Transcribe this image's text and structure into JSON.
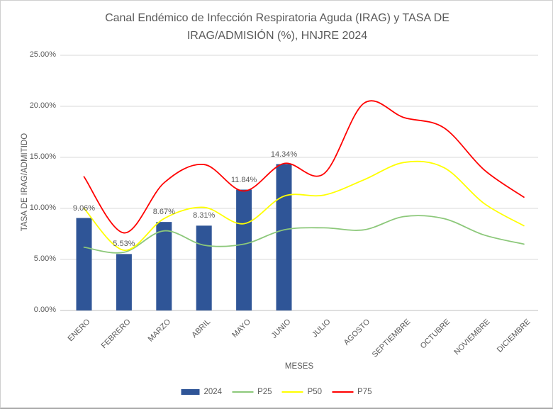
{
  "window": {
    "background": "#FFFFFF",
    "border_color": "#CFCFCF",
    "text_color": "#595959"
  },
  "chart_data": {
    "type": "combo-bar-line",
    "title": "Canal Endémico de Infección Respiratoria Aguda (IRAG) y TASA DE IRAG/ADMISIÓN (%), HNJRE 2024",
    "xlabel": "MESES",
    "ylabel": "TASA DE IRAG/ADMITIDO",
    "categories": [
      "ENERO",
      "FEBRERO",
      "MARZO",
      "ABRIL",
      "MAYO",
      "JUNIO",
      "JULIO",
      "AGOSTO",
      "SEPTIEMBRE",
      "OCTUBRE",
      "NOVIEMBRE",
      "DICIEMBRE"
    ],
    "y_ticks": [
      "0.00%",
      "5.00%",
      "10.00%",
      "15.00%",
      "20.00%",
      "25.00%"
    ],
    "ylim": [
      0,
      25
    ],
    "grid": true,
    "gridline_color": "#D9D9D9",
    "axis_line_color": "#BFBFBF",
    "legend_position": "bottom",
    "bar_series": {
      "name": "2024",
      "color": "#2F5597",
      "values": [
        9.06,
        5.53,
        8.67,
        8.31,
        11.84,
        14.34
      ],
      "data_labels": [
        "9.06%",
        "5.53%",
        "8.67%",
        "8.31%",
        "11.84%",
        "14.34%"
      ]
    },
    "line_series": [
      {
        "name": "P25",
        "color": "#8CC87A",
        "smooth": true,
        "values": [
          6.2,
          5.7,
          7.8,
          6.4,
          6.5,
          7.9,
          8.1,
          7.9,
          9.2,
          9.0,
          7.4,
          6.5
        ]
      },
      {
        "name": "P50",
        "color": "#FFFF00",
        "smooth": true,
        "values": [
          10.0,
          5.9,
          9.0,
          10.1,
          8.5,
          11.2,
          11.3,
          12.8,
          14.5,
          14.0,
          10.5,
          8.3
        ]
      },
      {
        "name": "P75",
        "color": "#FF0000",
        "smooth": true,
        "values": [
          13.1,
          7.6,
          12.5,
          14.3,
          11.7,
          14.4,
          13.4,
          20.3,
          18.9,
          17.9,
          13.8,
          11.1
        ]
      }
    ]
  }
}
